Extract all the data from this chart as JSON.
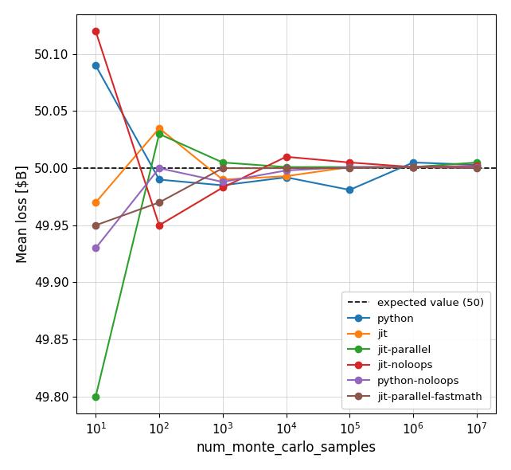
{
  "x": [
    10,
    100,
    1000,
    10000,
    100000,
    1000000,
    10000000
  ],
  "series": {
    "python": {
      "color": "#1f77b4",
      "values": [
        50.09,
        49.99,
        49.985,
        49.992,
        49.981,
        50.005,
        50.003
      ]
    },
    "jit": {
      "color": "#ff7f0e",
      "values": [
        49.97,
        50.035,
        49.99,
        49.993,
        50.001,
        50.001,
        50.001
      ]
    },
    "jit-parallel": {
      "color": "#2ca02c",
      "values": [
        49.8,
        50.03,
        50.005,
        50.001,
        50.001,
        50.001,
        50.005
      ]
    },
    "jit-noloops": {
      "color": "#d62728",
      "values": [
        50.12,
        49.95,
        49.983,
        50.01,
        50.005,
        50.001,
        50.002
      ]
    },
    "python-noloops": {
      "color": "#9467bd",
      "values": [
        49.93,
        50.0,
        49.988,
        49.998,
        50.001,
        50.001,
        50.001
      ]
    },
    "jit-parallel-fastmath": {
      "color": "#8c564b",
      "values": [
        49.95,
        49.97,
        50.0,
        50.0,
        50.0,
        50.001,
        50.0
      ]
    }
  },
  "expected_value": 50.0,
  "xlabel": "num_monte_carlo_samples",
  "ylabel": "Mean loss [$B]",
  "ylim": [
    49.785,
    50.135
  ],
  "yticks": [
    49.8,
    49.85,
    49.9,
    49.95,
    50.0,
    50.05,
    50.1
  ],
  "background_color": "#ffffff"
}
